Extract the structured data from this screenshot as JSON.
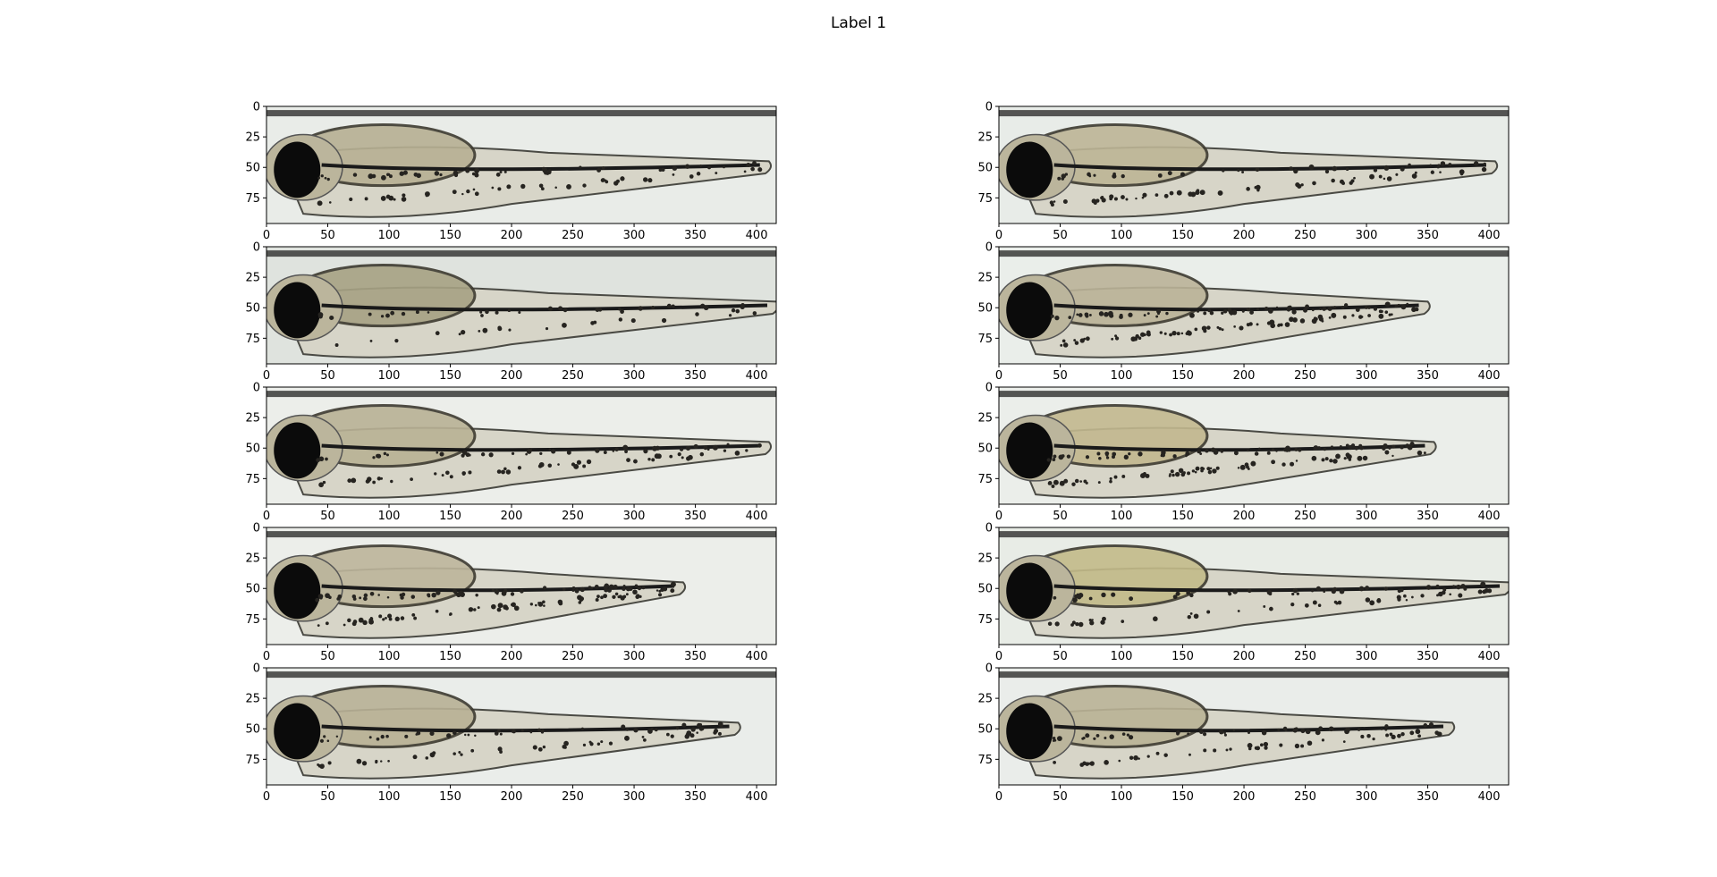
{
  "figure": {
    "title": "Label 1",
    "layout": {
      "rows": 5,
      "cols": 2
    },
    "axes": {
      "x_ticks": [
        "0",
        "50",
        "100",
        "150",
        "200",
        "250",
        "300",
        "350",
        "400"
      ],
      "y_ticks": [
        "0",
        "25",
        "50",
        "75"
      ],
      "x_range": [
        0,
        416
      ],
      "y_range": [
        96,
        0
      ]
    },
    "panels": [
      {
        "id": "r1c1",
        "subject": "zebrafish larva",
        "background": "#e9ece8",
        "tail_end_x": 410,
        "head_tone": "#b7b093",
        "pigment_density": "medium"
      },
      {
        "id": "r1c2",
        "subject": "zebrafish larva",
        "background": "#e8ece8",
        "tail_end_x": 405,
        "head_tone": "#bdb596",
        "pigment_density": "medium"
      },
      {
        "id": "r2c1",
        "subject": "zebrafish larva",
        "background": "#dfe3de",
        "tail_end_x": 416,
        "head_tone": "#a7a284",
        "pigment_density": "low"
      },
      {
        "id": "r2c2",
        "subject": "zebrafish larva",
        "background": "#eaeeea",
        "tail_end_x": 350,
        "head_tone": "#bbb398",
        "pigment_density": "high"
      },
      {
        "id": "r3c1",
        "subject": "zebrafish larva",
        "background": "#eceeea",
        "tail_end_x": 410,
        "head_tone": "#b9b295",
        "pigment_density": "medium"
      },
      {
        "id": "r3c2",
        "subject": "zebrafish larva",
        "background": "#ebeeea",
        "tail_end_x": 355,
        "head_tone": "#c2b88f",
        "pigment_density": "high"
      },
      {
        "id": "r4c1",
        "subject": "zebrafish larva",
        "background": "#eceeea",
        "tail_end_x": 340,
        "head_tone": "#bdb59b",
        "pigment_density": "high"
      },
      {
        "id": "r4c2",
        "subject": "zebrafish larva",
        "background": "#e8ece6",
        "tail_end_x": 416,
        "head_tone": "#c3bb89",
        "pigment_density": "medium"
      },
      {
        "id": "r5c1",
        "subject": "zebrafish larva",
        "background": "#eaedea",
        "tail_end_x": 385,
        "head_tone": "#b8b195",
        "pigment_density": "medium"
      },
      {
        "id": "r5c2",
        "subject": "zebrafish larva",
        "background": "#eaedea",
        "tail_end_x": 370,
        "head_tone": "#bab396",
        "pigment_density": "medium"
      }
    ]
  }
}
